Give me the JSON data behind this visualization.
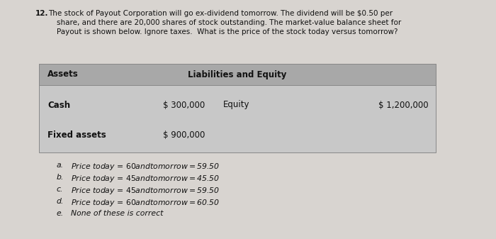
{
  "question_number": "12.",
  "question_line1": " The stock of Payout Corporation will go ex-dividend tomorrow. The dividend will be $0.50 per",
  "question_line2": "share, and there are 20,000 shares of stock outstanding. The market-value balance sheet for",
  "question_line3": "Payout is shown below. Ignore taxes.  What is the price of the stock today versus tomorrow?",
  "table_header_left": "Assets",
  "table_header_right": "Liabilities and Equity",
  "row1_label": "Cash",
  "row1_value": "$ 300,000",
  "row1_right_label": "Equity",
  "row1_right_value": "$ 1,200,000",
  "row2_label": "Fixed assets",
  "row2_value": "$ 900,000",
  "choices_labels": [
    "a.",
    "b.",
    "c.",
    "d.",
    "e."
  ],
  "choices_text": [
    "Price today = $60 and tomorrow = $59.50",
    "Price today = $45 and tomorrow = $45.50",
    "Price today = $45 and tomorrow = $59.50",
    "Price today = $60 and tomorrow = $60.50",
    "None of these is correct"
  ],
  "bg_color": "#c8c8c8",
  "table_header_bg": "#a8a8a8",
  "page_bg": "#d8d4d0",
  "text_color": "#111111"
}
